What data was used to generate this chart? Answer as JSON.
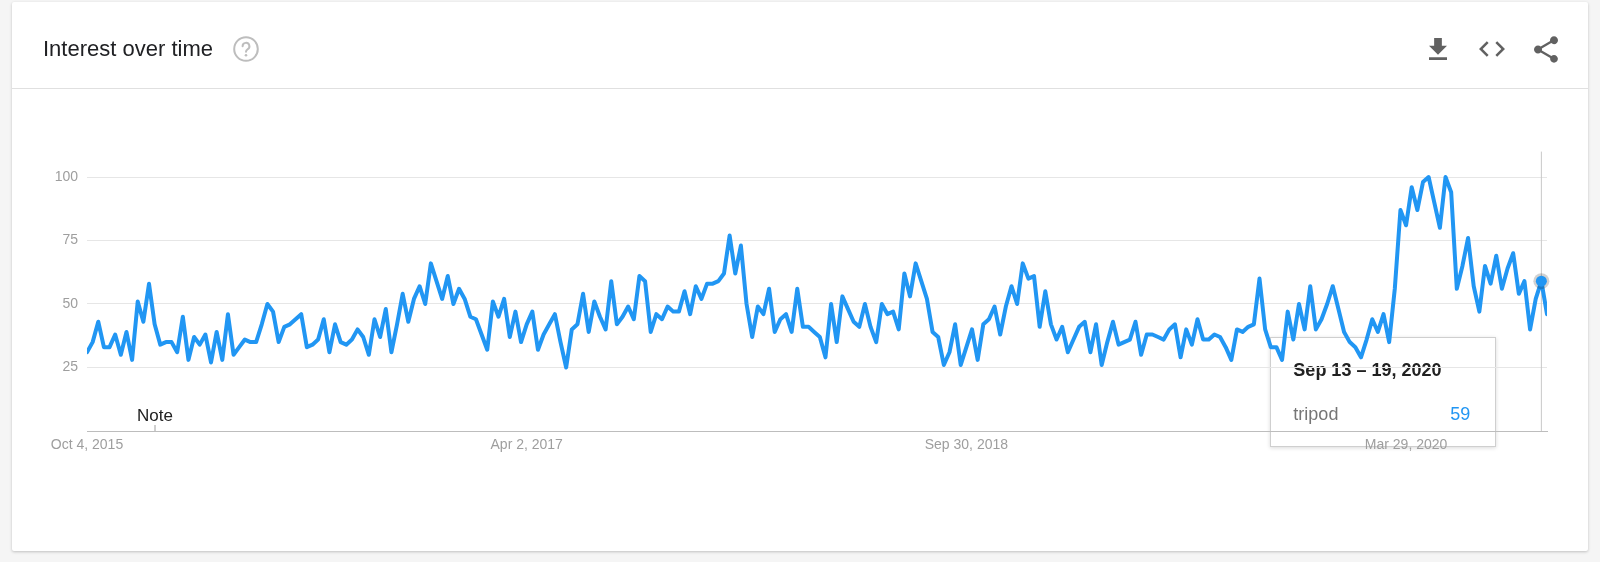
{
  "chart_data": {
    "type": "line",
    "title": "Interest over time",
    "x": [
      "2015-10-04",
      "2015-10-11",
      "2015-10-18",
      "2015-10-25",
      "2015-11-01",
      "2015-11-08",
      "2015-11-15",
      "2015-11-22",
      "2015-11-29",
      "2015-12-06",
      "2015-12-13",
      "2015-12-20",
      "2015-12-27",
      "2016-01-03",
      "2016-01-10",
      "2016-01-17",
      "2016-01-24",
      "2016-01-31",
      "2016-02-07",
      "2016-02-14",
      "2016-02-21",
      "2016-02-28",
      "2016-03-06",
      "2016-03-13",
      "2016-03-20",
      "2016-03-27",
      "2016-04-03",
      "2016-04-10",
      "2016-04-17",
      "2016-04-24",
      "2016-05-01",
      "2016-05-08",
      "2016-05-15",
      "2016-05-22",
      "2016-05-29",
      "2016-06-05",
      "2016-06-12",
      "2016-06-19",
      "2016-06-26",
      "2016-07-03",
      "2016-07-10",
      "2016-07-17",
      "2016-07-24",
      "2016-07-31",
      "2016-08-07",
      "2016-08-14",
      "2016-08-21",
      "2016-08-28",
      "2016-09-04",
      "2016-09-11",
      "2016-09-18",
      "2016-09-25",
      "2016-10-02",
      "2016-10-09",
      "2016-10-16",
      "2016-10-23",
      "2016-10-30",
      "2016-11-06",
      "2016-11-13",
      "2016-11-20",
      "2016-11-27",
      "2016-12-04",
      "2016-12-11",
      "2016-12-18",
      "2016-12-25",
      "2017-01-01",
      "2017-01-08",
      "2017-01-15",
      "2017-01-22",
      "2017-01-29",
      "2017-02-05",
      "2017-02-12",
      "2017-02-19",
      "2017-02-26",
      "2017-03-05",
      "2017-03-12",
      "2017-03-19",
      "2017-03-26",
      "2017-04-02",
      "2017-04-09",
      "2017-04-16",
      "2017-04-23",
      "2017-04-30",
      "2017-05-07",
      "2017-05-14",
      "2017-05-21",
      "2017-05-28",
      "2017-06-04",
      "2017-06-11",
      "2017-06-18",
      "2017-06-25",
      "2017-07-02",
      "2017-07-09",
      "2017-07-16",
      "2017-07-23",
      "2017-07-30",
      "2017-08-06",
      "2017-08-13",
      "2017-08-20",
      "2017-08-27",
      "2017-09-03",
      "2017-09-10",
      "2017-09-17",
      "2017-09-24",
      "2017-10-01",
      "2017-10-08",
      "2017-10-15",
      "2017-10-22",
      "2017-10-29",
      "2017-11-05",
      "2017-11-12",
      "2017-11-19",
      "2017-11-26",
      "2017-12-03",
      "2017-12-10",
      "2017-12-17",
      "2017-12-24",
      "2017-12-31",
      "2018-01-07",
      "2018-01-14",
      "2018-01-21",
      "2018-01-28",
      "2018-02-04",
      "2018-02-11",
      "2018-02-18",
      "2018-02-25",
      "2018-03-04",
      "2018-03-11",
      "2018-03-18",
      "2018-03-25",
      "2018-04-01",
      "2018-04-08",
      "2018-04-15",
      "2018-04-22",
      "2018-04-29",
      "2018-05-06",
      "2018-05-13",
      "2018-05-20",
      "2018-05-27",
      "2018-06-03",
      "2018-06-10",
      "2018-06-17",
      "2018-06-24",
      "2018-07-01",
      "2018-07-08",
      "2018-07-15",
      "2018-07-22",
      "2018-07-29",
      "2018-08-05",
      "2018-08-12",
      "2018-08-19",
      "2018-08-26",
      "2018-09-02",
      "2018-09-09",
      "2018-09-16",
      "2018-09-23",
      "2018-09-30",
      "2018-10-07",
      "2018-10-14",
      "2018-10-21",
      "2018-10-28",
      "2018-11-04",
      "2018-11-11",
      "2018-11-18",
      "2018-11-25",
      "2018-12-02",
      "2018-12-09",
      "2018-12-16",
      "2018-12-23",
      "2018-12-30",
      "2019-01-06",
      "2019-01-13",
      "2019-01-20",
      "2019-01-27",
      "2019-02-03",
      "2019-02-10",
      "2019-02-17",
      "2019-02-24",
      "2019-03-03",
      "2019-03-10",
      "2019-03-17",
      "2019-03-24",
      "2019-03-31",
      "2019-04-07",
      "2019-04-14",
      "2019-04-21",
      "2019-04-28",
      "2019-05-05",
      "2019-05-12",
      "2019-05-19",
      "2019-05-26",
      "2019-06-02",
      "2019-06-09",
      "2019-06-16",
      "2019-06-23",
      "2019-06-30",
      "2019-07-07",
      "2019-07-14",
      "2019-07-21",
      "2019-07-28",
      "2019-08-04",
      "2019-08-11",
      "2019-08-18",
      "2019-08-25",
      "2019-09-01",
      "2019-09-08",
      "2019-09-15",
      "2019-09-22",
      "2019-09-29",
      "2019-10-06",
      "2019-10-13",
      "2019-10-20",
      "2019-10-27",
      "2019-11-03",
      "2019-11-10",
      "2019-11-17",
      "2019-11-24",
      "2019-12-01",
      "2019-12-08",
      "2019-12-15",
      "2019-12-22",
      "2019-12-29",
      "2020-01-05",
      "2020-01-12",
      "2020-01-19",
      "2020-01-26",
      "2020-02-02",
      "2020-02-09",
      "2020-02-16",
      "2020-02-23",
      "2020-03-01",
      "2020-03-08",
      "2020-03-15",
      "2020-03-22",
      "2020-03-29",
      "2020-04-05",
      "2020-04-12",
      "2020-04-19",
      "2020-04-26",
      "2020-05-03",
      "2020-05-10",
      "2020-05-17",
      "2020-05-24",
      "2020-05-31",
      "2020-06-07",
      "2020-06-14",
      "2020-06-21",
      "2020-06-28",
      "2020-07-05",
      "2020-07-12",
      "2020-07-19",
      "2020-07-26",
      "2020-08-02",
      "2020-08-09",
      "2020-08-16",
      "2020-08-23",
      "2020-08-30",
      "2020-09-06",
      "2020-09-13",
      "2020-09-20"
    ],
    "series": [
      {
        "name": "tripod",
        "color": "#2196f3",
        "values": [
          31,
          35,
          43,
          33,
          33,
          38,
          30,
          39,
          28,
          51,
          43,
          58,
          42,
          34,
          35,
          35,
          31,
          45,
          28,
          37,
          34,
          38,
          27,
          39,
          28,
          46,
          30,
          33,
          36,
          35,
          35,
          42,
          50,
          47,
          35,
          41,
          42,
          44,
          46,
          33,
          34,
          36,
          44,
          31,
          42,
          35,
          34,
          36,
          40,
          37,
          30,
          44,
          37,
          48,
          31,
          42,
          54,
          43,
          52,
          57,
          50,
          66,
          59,
          52,
          61,
          50,
          56,
          52,
          45,
          44,
          38,
          32,
          51,
          45,
          52,
          37,
          47,
          35,
          42,
          47,
          32,
          38,
          42,
          46,
          35,
          25,
          40,
          42,
          54,
          39,
          51,
          45,
          40,
          59,
          42,
          45,
          49,
          44,
          61,
          59,
          39,
          46,
          44,
          49,
          47,
          47,
          55,
          46,
          57,
          52,
          58,
          58,
          59,
          62,
          77,
          62,
          73,
          50,
          37,
          49,
          46,
          56,
          39,
          44,
          46,
          39,
          56,
          41,
          41,
          39,
          37,
          29,
          50,
          35,
          53,
          48,
          43,
          41,
          50,
          41,
          35,
          50,
          46,
          47,
          40,
          62,
          53,
          66,
          59,
          52,
          39,
          37,
          26,
          31,
          42,
          26,
          33,
          40,
          28,
          42,
          44,
          49,
          38,
          49,
          57,
          50,
          66,
          60,
          61,
          41,
          55,
          42,
          36,
          41,
          31,
          36,
          41,
          43,
          31,
          42,
          26,
          35,
          43,
          34,
          35,
          36,
          43,
          30,
          38,
          38,
          37,
          36,
          40,
          42,
          29,
          40,
          34,
          44,
          36,
          36,
          38,
          37,
          33,
          28,
          40,
          39,
          41,
          42,
          60,
          40,
          33,
          33,
          28,
          47,
          36,
          50,
          40,
          57,
          40,
          44,
          50,
          57,
          48,
          39,
          35,
          33,
          29,
          36,
          44,
          39,
          46,
          35,
          56,
          87,
          81,
          96,
          87,
          98,
          100,
          90,
          80,
          100,
          94,
          56,
          65,
          76,
          57,
          47,
          65,
          58,
          69,
          56,
          64,
          70,
          54,
          59,
          40,
          52,
          59,
          46
        ]
      }
    ],
    "xlim": [
      "2015-10-04",
      "2020-09-20"
    ],
    "xticks": [
      {
        "value": "2015-10-04",
        "label": "Oct 4, 2015"
      },
      {
        "value": "2017-04-02",
        "label": "Apr 2, 2017"
      },
      {
        "value": "2018-09-30",
        "label": "Sep 30, 2018"
      },
      {
        "value": "2020-03-29",
        "label": "Mar 29, 2020"
      }
    ],
    "ylim": [
      0,
      110
    ],
    "yticks": [
      {
        "value": 0,
        "label": null
      },
      25,
      50,
      75,
      100
    ],
    "grid": "y",
    "marker": "none",
    "line_style": "solid",
    "ref_lines": [
      {
        "axis": "x",
        "value": "2020-09-13",
        "color": "#c8c8c8"
      }
    ],
    "annotations": [
      "Note",
      "Sep 13 – 19, 2020",
      "59"
    ]
  }
}
